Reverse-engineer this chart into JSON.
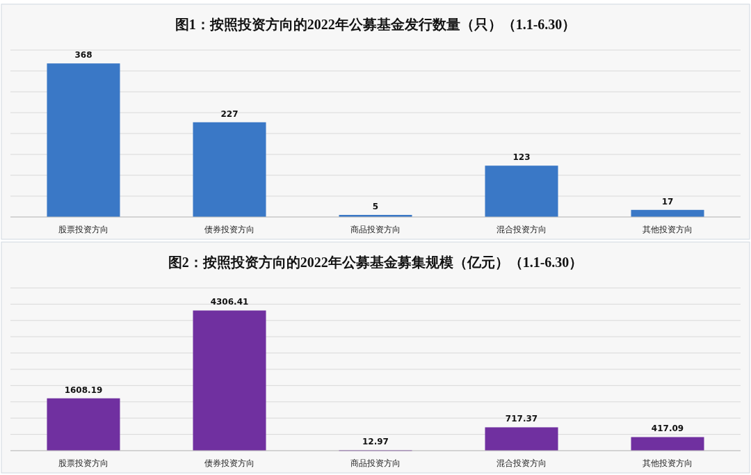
{
  "chart_data": [
    {
      "type": "bar",
      "title": "图1：按照投资方向的2022年公募基金发行数量（只）（1.1-6.30）",
      "categories": [
        "股票投资方向",
        "债券投资方向",
        "商品投资方向",
        "混合投资方向",
        "其他投资方向"
      ],
      "values": [
        368,
        227,
        5,
        123,
        17
      ],
      "color": "#3a78c6",
      "data_labels": true,
      "grid": "y",
      "ylim": [
        0,
        400
      ],
      "yticks": [
        {
          "value": 0,
          "label": null
        },
        {
          "value": 50,
          "label": null
        },
        {
          "value": 100,
          "label": null
        },
        {
          "value": 150,
          "label": null
        },
        {
          "value": 200,
          "label": null
        },
        {
          "value": 250,
          "label": null
        },
        {
          "value": 300,
          "label": null
        },
        {
          "value": 350,
          "label": null
        },
        {
          "value": 400,
          "label": null
        }
      ]
    },
    {
      "type": "bar",
      "title": "图2：按照投资方向的2022年公募基金募集规模（亿元）（1.1-6.30）",
      "categories": [
        "股票投资方向",
        "债券投资方向",
        "商品投资方向",
        "混合投资方向",
        "其他投资方向"
      ],
      "values": [
        1608.19,
        4306.41,
        12.97,
        717.37,
        417.09
      ],
      "color": "#7030a0",
      "data_labels": true,
      "grid": "y",
      "ylim": [
        0,
        5000
      ],
      "yticks": [
        {
          "value": 0,
          "label": null
        },
        {
          "value": 500,
          "label": null
        },
        {
          "value": 1000,
          "label": null
        },
        {
          "value": 1500,
          "label": null
        },
        {
          "value": 2000,
          "label": null
        },
        {
          "value": 2500,
          "label": null
        },
        {
          "value": 3000,
          "label": null
        },
        {
          "value": 3500,
          "label": null
        },
        {
          "value": 4000,
          "label": null
        },
        {
          "value": 4500,
          "label": null
        },
        {
          "value": 5000,
          "label": null
        }
      ]
    }
  ]
}
